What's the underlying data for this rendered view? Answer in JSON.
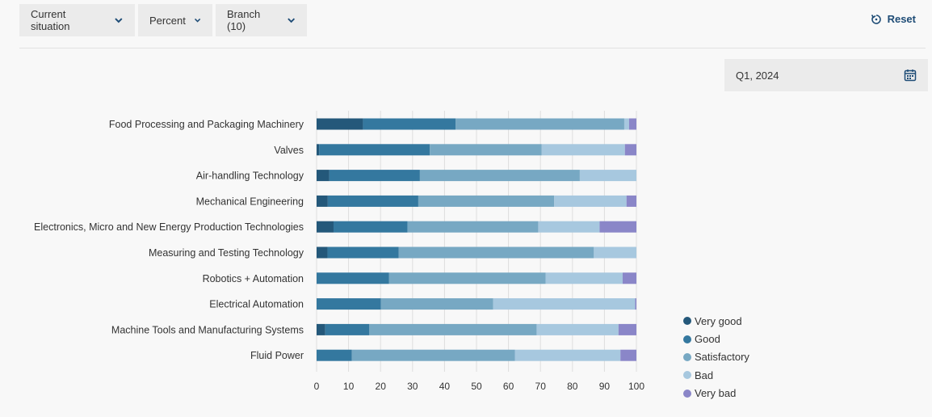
{
  "toolbar": {
    "situation_label": "Current situation",
    "unit_label": "Percent",
    "branch_label": "Branch (10)",
    "reset_label": "Reset"
  },
  "period": {
    "value": "Q1, 2024"
  },
  "chart_data": {
    "type": "bar",
    "orientation": "horizontal",
    "stacked": true,
    "categories": [
      "Food Processing and Packaging Machinery",
      "Valves",
      "Air-handling Technology",
      "Mechanical Engineering",
      "Electronics, Micro and New Energy Production Technologies",
      "Measuring and Testing Technology",
      "Robotics + Automation",
      "Electrical Automation",
      "Machine Tools and Manufacturing Systems",
      "Fluid Power"
    ],
    "series": [
      {
        "name": "Very good",
        "color": "#24587a",
        "values": [
          14.5,
          0.8,
          4.0,
          3.5,
          5.3,
          3.4,
          0.0,
          0.0,
          2.7,
          0.0
        ]
      },
      {
        "name": "Good",
        "color": "#34789f",
        "values": [
          29.0,
          34.6,
          28.3,
          28.3,
          23.1,
          22.3,
          22.6,
          20.1,
          13.8,
          11.0
        ]
      },
      {
        "name": "Satisfactory",
        "color": "#77a8c3",
        "values": [
          52.7,
          35.0,
          50.0,
          42.5,
          40.9,
          61.0,
          49.0,
          35.1,
          52.3,
          51.0
        ]
      },
      {
        "name": "Bad",
        "color": "#a7c8df",
        "values": [
          1.5,
          26.0,
          17.7,
          22.6,
          19.2,
          13.3,
          24.1,
          44.4,
          25.6,
          33.0
        ]
      },
      {
        "name": "Very bad",
        "color": "#8a86c8",
        "values": [
          2.3,
          3.6,
          0.0,
          3.1,
          11.5,
          0.0,
          4.3,
          0.4,
          5.6,
          5.0
        ]
      }
    ],
    "xlim": [
      0,
      100
    ],
    "xticks": [
      0,
      10,
      20,
      30,
      40,
      50,
      60,
      70,
      80,
      90,
      100
    ],
    "grid": "vertical",
    "legend": "bottom-right"
  }
}
